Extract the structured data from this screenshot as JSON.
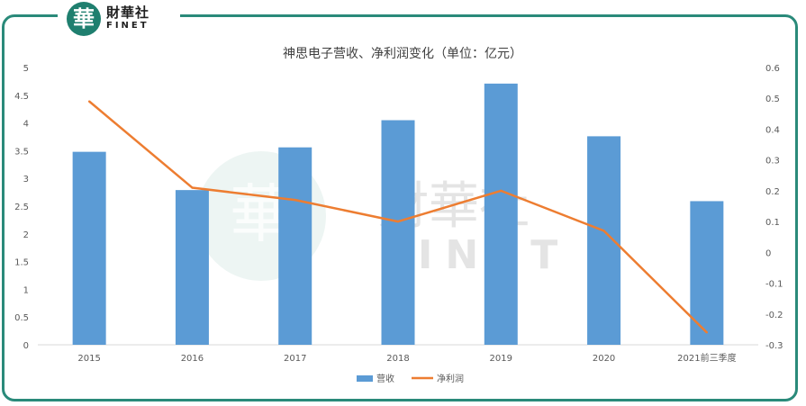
{
  "brand": {
    "seal_char": "華",
    "name_cn": "財華社",
    "name_en": "FINET",
    "colors": {
      "frame": "#2a8a7a",
      "seal": "#1f7f6f"
    }
  },
  "chart_data": {
    "type": "bar",
    "title": "神思电子营收、净利润变化（单位：亿元）",
    "categories": [
      "2015",
      "2016",
      "2017",
      "2018",
      "2019",
      "2020",
      "2021前三季度"
    ],
    "series": [
      {
        "name": "营收",
        "kind": "bar",
        "axis": "left",
        "color": "#5b9bd5",
        "values": [
          3.48,
          2.79,
          3.56,
          4.05,
          4.71,
          3.76,
          2.59
        ]
      },
      {
        "name": "净利润",
        "kind": "line",
        "axis": "right",
        "color": "#ed7d31",
        "values": [
          0.49,
          0.21,
          0.17,
          0.1,
          0.2,
          0.07,
          -0.26
        ]
      }
    ],
    "y_left": {
      "ylim": [
        0,
        5
      ],
      "ticks": [
        "0",
        "0.5",
        "1",
        "1.5",
        "2",
        "2.5",
        "3",
        "3.5",
        "4",
        "4.5",
        "5"
      ]
    },
    "y_right": {
      "ylim": [
        -0.3,
        0.6
      ],
      "ticks": [
        "-0.3",
        "-0.2",
        "-0.1",
        "0",
        "0.1",
        "0.2",
        "0.3",
        "0.4",
        "0.5",
        "0.6"
      ]
    },
    "legend": "bottom",
    "grid": false
  }
}
